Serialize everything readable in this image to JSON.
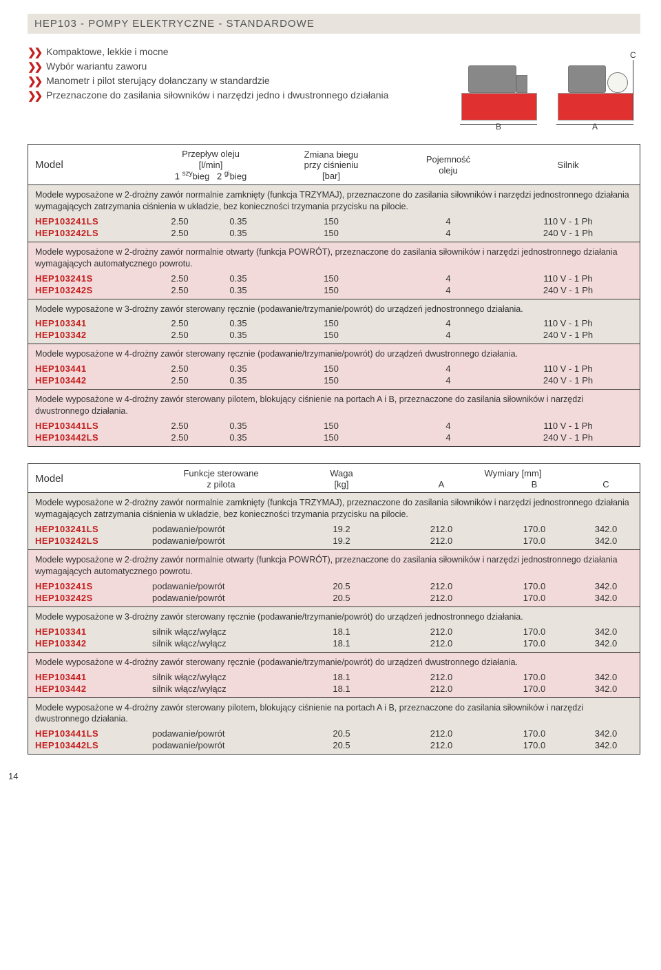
{
  "page_number": "14",
  "title": "HEP103 - POMPY ELEKTRYCZNE - STANDARDOWE",
  "features": [
    "Kompaktowe, lekkie i mocne",
    "Wybór wariantu zaworu",
    "Manometr i pilot sterujący dołanczany w standardzie",
    "Przeznaczone do zasilania siłowników i narzędzi jedno i dwustronnego działania"
  ],
  "diagram_labels": {
    "a": "A",
    "b": "B",
    "c": "C"
  },
  "table1": {
    "headers": {
      "h1": "Model",
      "h2_l1": "Przepływ oleju",
      "h2_l2": "[l/min]",
      "h2_l3a": "1",
      "h2_l3a_s": "szy",
      "h2_l3b": "bieg",
      "h2_l3c": "2",
      "h2_l3c_s": "gi",
      "h2_l3d": "bieg",
      "h3_l1": "Zmiana biegu",
      "h3_l2": "przy ciśnieniu",
      "h3_l3": "[bar]",
      "h4_l1": "Pojemność",
      "h4_l2": "oleju",
      "h5": "Silnik"
    },
    "sections": [
      {
        "style": "a",
        "desc": "Modele wyposażone w 2-drożny zawór normalnie zamknięty (funkcja TRZYMAJ), przeznaczone do zasilania siłowników i narzędzi jednostronnego działania wymagających zatrzymania ciśnienia w układzie, bez konieczności trzymania przycisku na pilocie.",
        "rows": [
          {
            "m": "HEP103241LS",
            "a": "2.50",
            "b": "0.35",
            "c": "150",
            "d": "4",
            "e": "110 V - 1 Ph"
          },
          {
            "m": "HEP103242LS",
            "a": "2.50",
            "b": "0.35",
            "c": "150",
            "d": "4",
            "e": "240 V - 1 Ph"
          }
        ]
      },
      {
        "style": "b",
        "desc": "Modele wyposażone w 2-drożny zawór normalnie otwarty (funkcja POWRÓT), przeznaczone do zasilania siłowników i narzędzi jednostronnego działania wymagających automatycznego powrotu.",
        "rows": [
          {
            "m": "HEP103241S",
            "a": "2.50",
            "b": "0.35",
            "c": "150",
            "d": "4",
            "e": "110 V - 1 Ph"
          },
          {
            "m": "HEP103242S",
            "a": "2.50",
            "b": "0.35",
            "c": "150",
            "d": "4",
            "e": "240 V - 1 Ph"
          }
        ]
      },
      {
        "style": "a",
        "desc": "Modele wyposażone w 3-drożny zawór sterowany ręcznie (podawanie/trzymanie/powrót) do urządzeń jednostronnego działania.",
        "rows": [
          {
            "m": "HEP103341",
            "a": "2.50",
            "b": "0.35",
            "c": "150",
            "d": "4",
            "e": "110 V - 1 Ph"
          },
          {
            "m": "HEP103342",
            "a": "2.50",
            "b": "0.35",
            "c": "150",
            "d": "4",
            "e": "240 V - 1 Ph"
          }
        ]
      },
      {
        "style": "b",
        "desc": "Modele wyposażone w 4-drożny zawór sterowany ręcznie (podawanie/trzymanie/powrót) do urządzeń dwustronnego działania.",
        "rows": [
          {
            "m": "HEP103441",
            "a": "2.50",
            "b": "0.35",
            "c": "150",
            "d": "4",
            "e": "110 V - 1 Ph"
          },
          {
            "m": "HEP103442",
            "a": "2.50",
            "b": "0.35",
            "c": "150",
            "d": "4",
            "e": "240 V - 1 Ph"
          }
        ]
      },
      {
        "style": "b",
        "desc": "Modele wyposażone w 4-drożny zawór sterowany pilotem, blokujący ciśnienie na portach A i B, przeznaczone do zasilania siłowników i narzędzi dwustronnego działania.",
        "rows": [
          {
            "m": "HEP103441LS",
            "a": "2.50",
            "b": "0.35",
            "c": "150",
            "d": "4",
            "e": "110 V - 1 Ph"
          },
          {
            "m": "HEP103442LS",
            "a": "2.50",
            "b": "0.35",
            "c": "150",
            "d": "4",
            "e": "240 V - 1 Ph"
          }
        ]
      }
    ]
  },
  "table2": {
    "headers": {
      "h1": "Model",
      "h2_l1": "Funkcje sterowane",
      "h2_l2": "z pilota",
      "h3_l1": "Waga",
      "h3_l2": "[kg]",
      "h4": "Wymiary [mm]",
      "h4a": "A",
      "h4b": "B",
      "h4c": "C"
    },
    "sections": [
      {
        "style": "a",
        "desc": "Modele wyposażone w 2-drożny zawór normalnie zamknięty (funkcja TRZYMAJ), przeznaczone do zasilania siłowników i narzędzi jednostronnego działania wymagających zatrzymania ciśnienia w układzie, bez konieczności trzymania przycisku na pilocie.",
        "rows": [
          {
            "m": "HEP103241LS",
            "f": "podawanie/powrót",
            "w": "19.2",
            "a": "212.0",
            "b": "170.0",
            "c": "342.0"
          },
          {
            "m": "HEP103242LS",
            "f": "podawanie/powrót",
            "w": "19.2",
            "a": "212.0",
            "b": "170.0",
            "c": "342.0"
          }
        ]
      },
      {
        "style": "b",
        "desc": "Modele wyposażone w 2-drożny zawór normalnie otwarty (funkcja POWRÓT), przeznaczone do zasilania siłowników i narzędzi jednostronnego działania wymagających automatycznego powrotu.",
        "rows": [
          {
            "m": "HEP103241S",
            "f": "podawanie/powrót",
            "w": "20.5",
            "a": "212.0",
            "b": "170.0",
            "c": "342.0"
          },
          {
            "m": "HEP103242S",
            "f": "podawanie/powrót",
            "w": "20.5",
            "a": "212.0",
            "b": "170.0",
            "c": "342.0"
          }
        ]
      },
      {
        "style": "a",
        "desc": "Modele wyposażone w 3-drożny zawór sterowany ręcznie (podawanie/trzymanie/powrót) do urządzeń jednostronnego działania.",
        "rows": [
          {
            "m": "HEP103341",
            "f": "silnik włącz/wyłącz",
            "w": "18.1",
            "a": "212.0",
            "b": "170.0",
            "c": "342.0"
          },
          {
            "m": "HEP103342",
            "f": "silnik włącz/wyłącz",
            "w": "18.1",
            "a": "212.0",
            "b": "170.0",
            "c": "342.0"
          }
        ]
      },
      {
        "style": "b",
        "desc": "Modele wyposażone w 4-drożny zawór sterowany ręcznie (podawanie/trzymanie/powrót) do urządzeń dwustronnego działania.",
        "rows": [
          {
            "m": "HEP103441",
            "f": "silnik włącz/wyłącz",
            "w": "18.1",
            "a": "212.0",
            "b": "170.0",
            "c": "342.0"
          },
          {
            "m": "HEP103442",
            "f": "silnik włącz/wyłącz",
            "w": "18.1",
            "a": "212.0",
            "b": "170.0",
            "c": "342.0"
          }
        ]
      },
      {
        "style": "a",
        "desc": "Modele wyposażone w 4-drożny zawór sterowany pilotem, blokujący ciśnienie na portach A i B, przeznaczone do zasilania siłowników i narzędzi dwustronnego działania.",
        "rows": [
          {
            "m": "HEP103441LS",
            "f": "podawanie/powrót",
            "w": "20.5",
            "a": "212.0",
            "b": "170.0",
            "c": "342.0"
          },
          {
            "m": "HEP103442LS",
            "f": "podawanie/powrót",
            "w": "20.5",
            "a": "212.0",
            "b": "170.0",
            "c": "342.0"
          }
        ]
      }
    ]
  }
}
